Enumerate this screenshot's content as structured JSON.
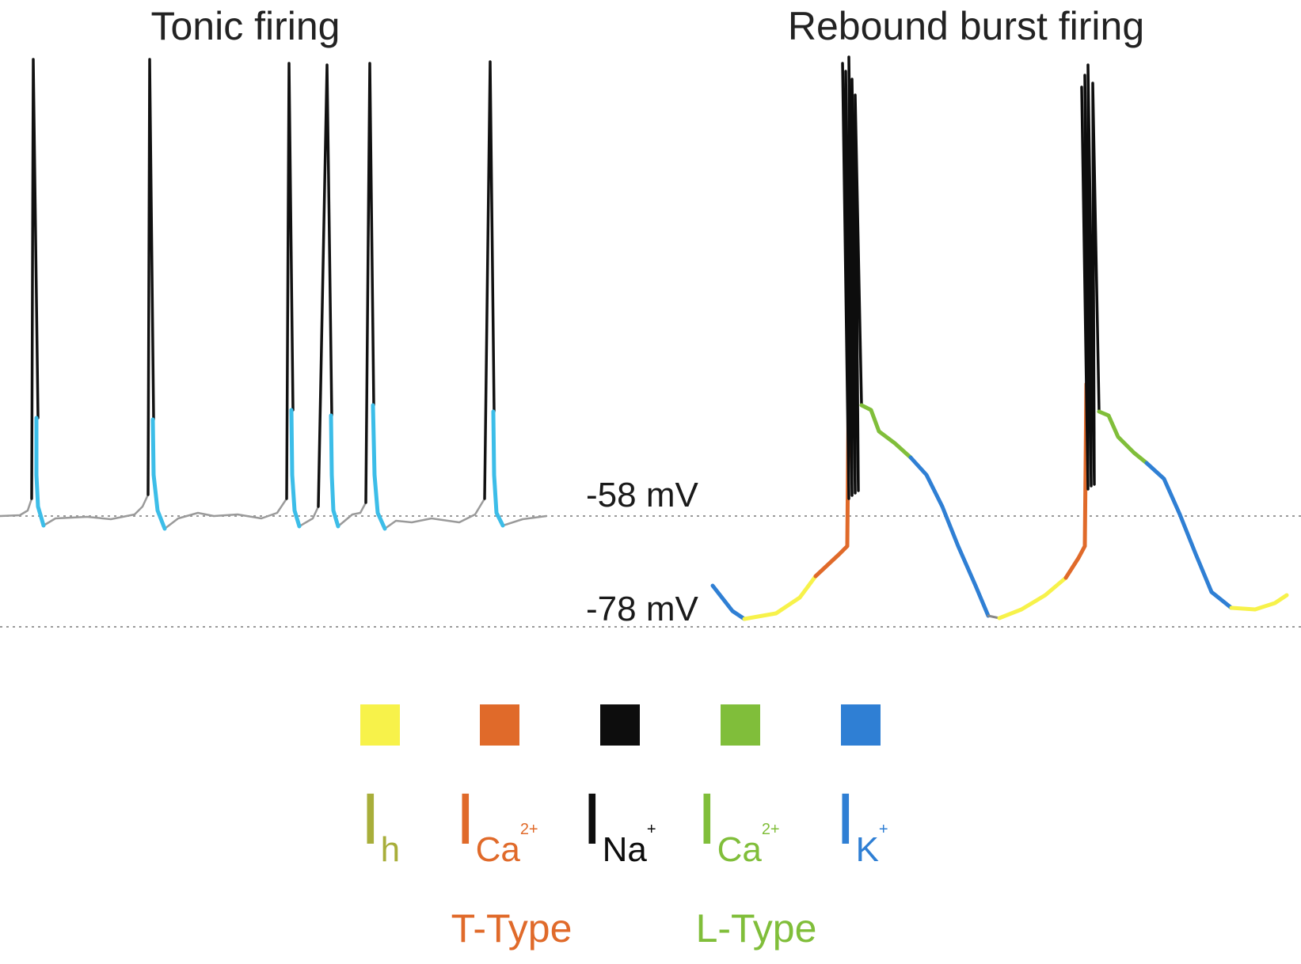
{
  "titles": {
    "tonic": "Tonic firing",
    "rebound": "Rebound burst firing"
  },
  "levels": {
    "upper": "-58 mV",
    "lower": "-78 mV"
  },
  "colors": {
    "ih": "#f7f24a",
    "t_type_ca": "#e06a2a",
    "na": "#0d0d0d",
    "l_type_ca": "#80be3a",
    "k": "#2f7fd4",
    "tonic_repolarization": "#3cbde8",
    "baseline_trace": "#9a9a9a"
  },
  "legend": {
    "items": [
      {
        "key": "ih",
        "symbol": "I",
        "sub": "h",
        "sup": "",
        "text_color": "#a8ae3a"
      },
      {
        "key": "t_type_ca",
        "symbol": "I",
        "sub": "Ca",
        "sup": "2+",
        "text_color": "#e06a2a"
      },
      {
        "key": "na",
        "symbol": "I",
        "sub": "Na",
        "sup": "+",
        "text_color": "#0d0d0d"
      },
      {
        "key": "l_type_ca",
        "symbol": "I",
        "sub": "Ca",
        "sup": "2+",
        "text_color": "#80be3a"
      },
      {
        "key": "k",
        "symbol": "I",
        "sub": "K",
        "sup": "+",
        "text_color": "#2f7fd4"
      }
    ],
    "t_type_label": "T-Type",
    "l_type_label": "L-Type"
  }
}
